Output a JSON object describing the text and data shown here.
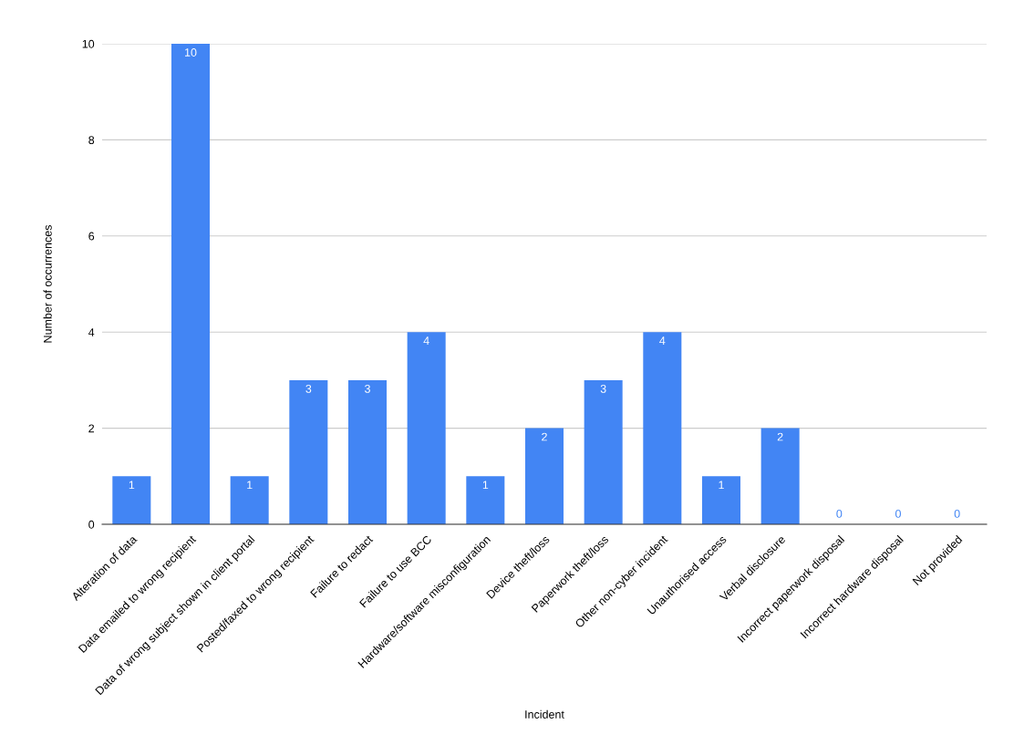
{
  "chart_data": {
    "type": "bar",
    "xlabel": "Incident",
    "ylabel": "Number of occurrences",
    "categories": [
      "Alteration of data",
      "Data emailed to wrong recipient",
      "Data of wrong subject shown in client portal",
      "Posted/faxed to wrong recipient",
      "Failure to redact",
      "Failure to use BCC",
      "Hardware/software misconfiguration",
      "Device theft/loss",
      "Paperwork theft/loss",
      "Other non-cyber incident",
      "Unauthorised access",
      "Verbal disclosure",
      "Incorrect paperwork disposal",
      "Incorrect hardware disposal",
      "Not provided"
    ],
    "values": [
      1,
      10,
      1,
      3,
      3,
      4,
      1,
      2,
      3,
      4,
      1,
      2,
      0,
      0,
      0
    ],
    "color": "#4285f4",
    "ylim": [
      0,
      10
    ],
    "yticks": [
      0,
      2,
      4,
      6,
      8,
      10
    ],
    "grid": "y",
    "data_labels": true
  }
}
